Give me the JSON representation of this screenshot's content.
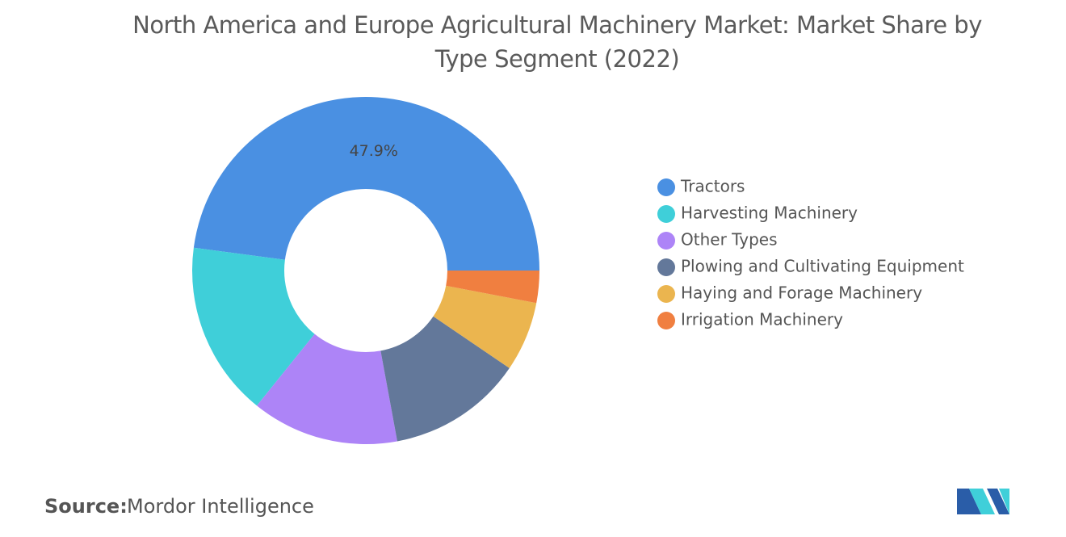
{
  "chart_data": {
    "type": "donut",
    "title": "North America and Europe Agricultural Machinery Market: Market Share by Type Segment (2022)",
    "categories": [
      "Tractors",
      "Harvesting Machinery",
      "Other Types",
      "Plowing and Cultivating Equipment",
      "Haying and Forage Machinery",
      "Irrigation Machinery"
    ],
    "values": [
      47.9,
      16.3,
      13.7,
      12.6,
      6.5,
      3.0
    ],
    "value_labels": [
      "47.9%",
      null,
      null,
      null,
      null,
      null
    ],
    "colors": [
      "#4a90e2",
      "#3fcfd9",
      "#ad84f7",
      "#63789a",
      "#ebb54f",
      "#f07f40"
    ],
    "legend": "right"
  },
  "source": {
    "label": "Source:",
    "text": "Mordor Intelligence"
  }
}
